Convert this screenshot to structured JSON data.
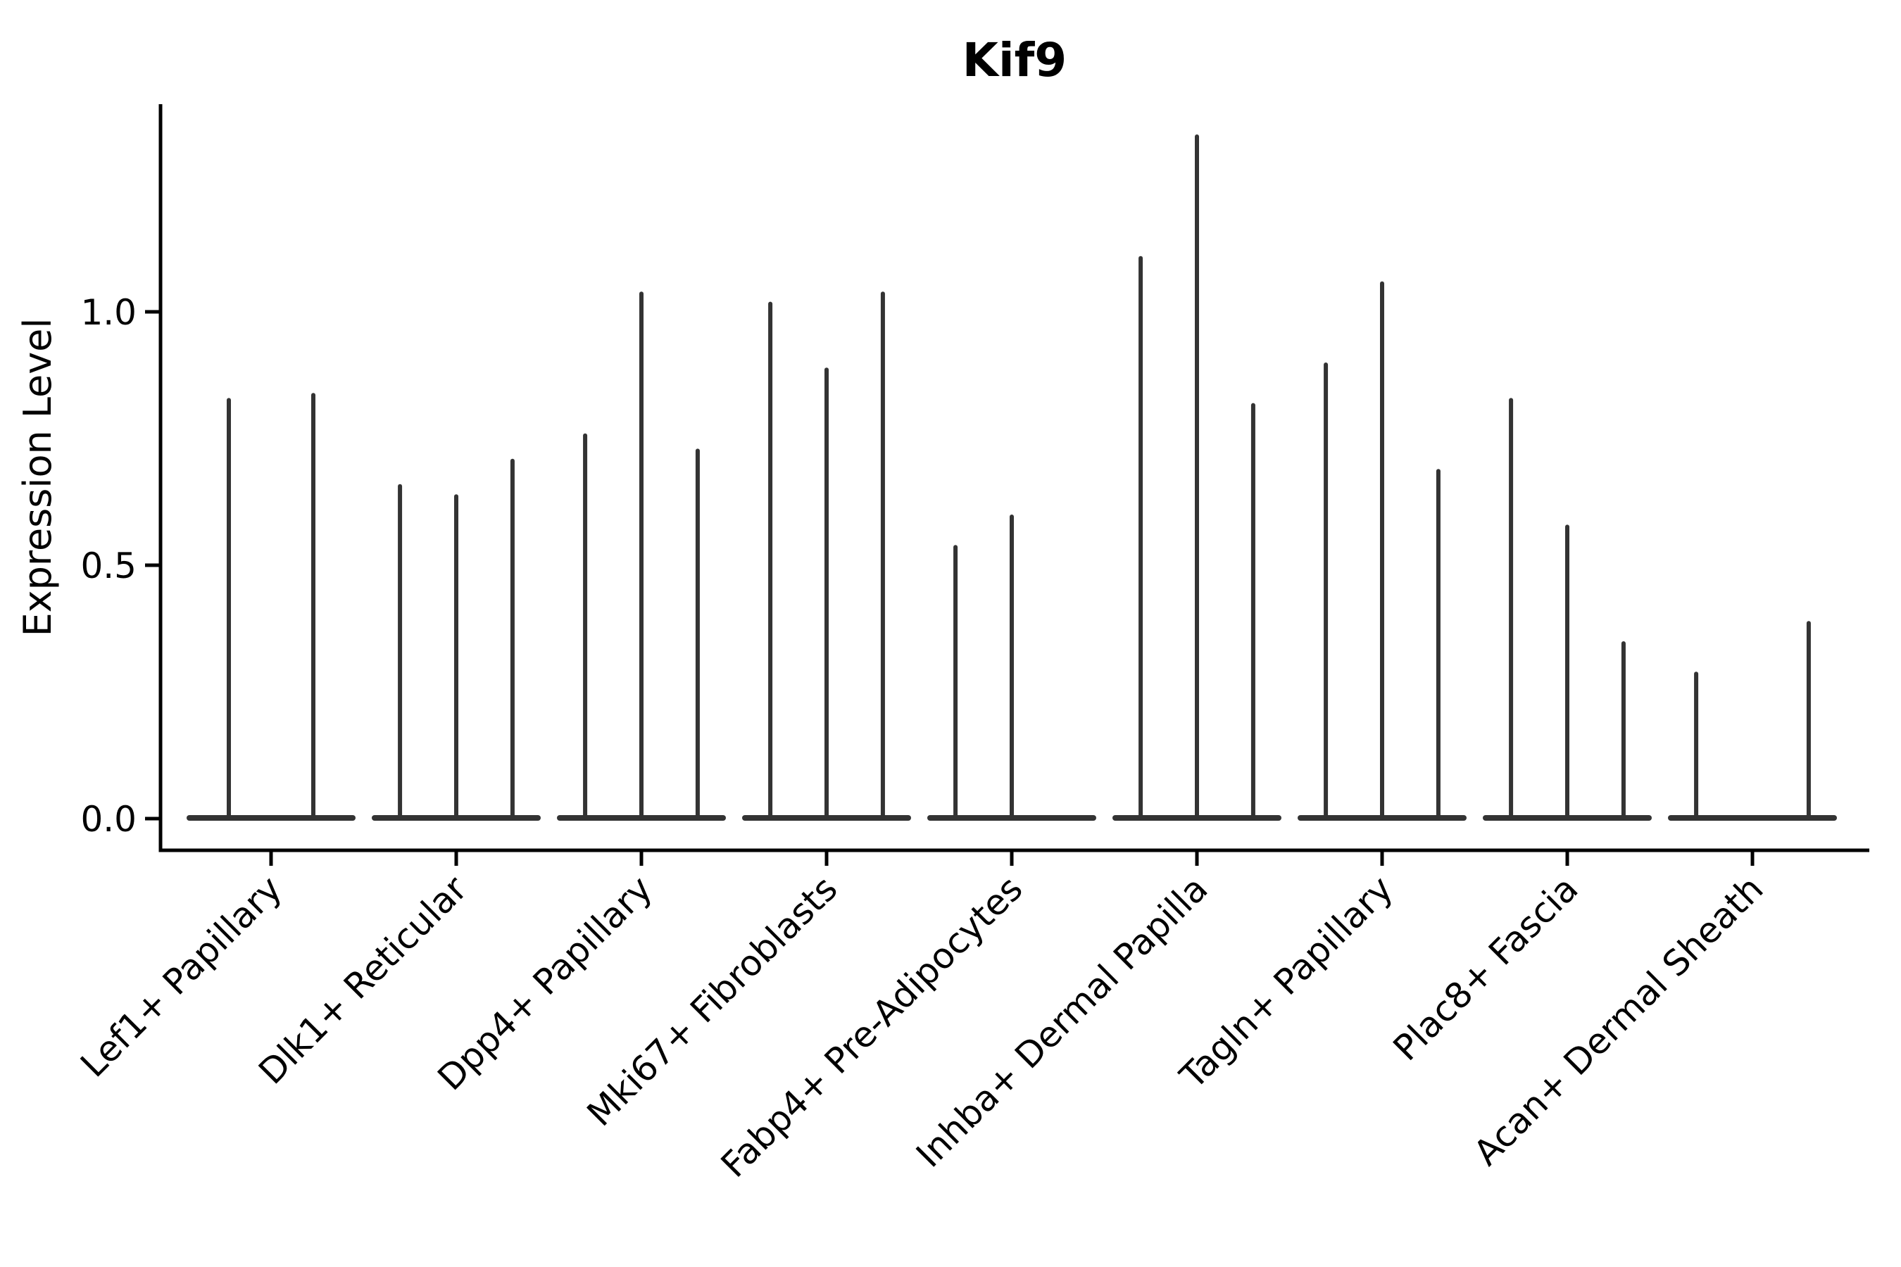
{
  "chart_data": {
    "type": "violin",
    "title": "Kif9",
    "ylabel": "Expression Level",
    "xlabel": "",
    "grid": false,
    "legend": "none",
    "ytick_labels": [
      "0.0",
      "0.5",
      "1.0"
    ],
    "ytick_values": [
      0.0,
      0.5,
      1.0
    ],
    "ylim": [
      -0.06,
      1.41
    ],
    "categories": [
      "Lef1+ Papillary",
      "Dlk1+ Reticular",
      "Dpp4+ Papillary",
      "Mki67+ Fibroblasts",
      "Fabp4+ Pre-Adipocytes",
      "Inhba+ Dermal Papilla",
      "Tagln+ Papillary",
      "Plac8+ Fascia",
      "Acan+ Dermal Sheath"
    ],
    "groups": [
      {
        "category": "Lef1+ Papillary",
        "violins": [
          {
            "offset": 0.25,
            "max": 0.83
          },
          {
            "offset": 0.75,
            "max": 0.84
          }
        ]
      },
      {
        "category": "Dlk1+ Reticular",
        "violins": [
          {
            "offset": 0.167,
            "max": 0.66
          },
          {
            "offset": 0.5,
            "max": 0.64
          },
          {
            "offset": 0.833,
            "max": 0.71
          }
        ]
      },
      {
        "category": "Dpp4+ Papillary",
        "violins": [
          {
            "offset": 0.167,
            "max": 0.76
          },
          {
            "offset": 0.5,
            "max": 1.04
          },
          {
            "offset": 0.833,
            "max": 0.73
          }
        ]
      },
      {
        "category": "Mki67+ Fibroblasts",
        "violins": [
          {
            "offset": 0.167,
            "max": 1.02
          },
          {
            "offset": 0.5,
            "max": 0.89
          },
          {
            "offset": 0.833,
            "max": 1.04
          }
        ]
      },
      {
        "category": "Fabp4+ Pre-Adipocytes",
        "violins": [
          {
            "offset": 0.167,
            "max": 0.54
          },
          {
            "offset": 0.5,
            "max": 0.6
          }
        ]
      },
      {
        "category": "Inhba+ Dermal Papilla",
        "violins": [
          {
            "offset": 0.167,
            "max": 1.11
          },
          {
            "offset": 0.5,
            "max": 1.35
          },
          {
            "offset": 0.833,
            "max": 0.82
          }
        ]
      },
      {
        "category": "Tagln+ Papillary",
        "violins": [
          {
            "offset": 0.167,
            "max": 0.9
          },
          {
            "offset": 0.5,
            "max": 1.06
          },
          {
            "offset": 0.833,
            "max": 0.69
          }
        ]
      },
      {
        "category": "Plac8+ Fascia",
        "violins": [
          {
            "offset": 0.167,
            "max": 0.83
          },
          {
            "offset": 0.5,
            "max": 0.58
          },
          {
            "offset": 0.833,
            "max": 0.35
          }
        ]
      },
      {
        "category": "Acan+ Dermal Sheath",
        "violins": [
          {
            "offset": 0.167,
            "max": 0.29
          },
          {
            "offset": 0.833,
            "max": 0.39
          }
        ]
      }
    ],
    "colors": {
      "violin": "#333333",
      "axis": "#000000",
      "text": "#000000",
      "background": "#ffffff"
    }
  }
}
